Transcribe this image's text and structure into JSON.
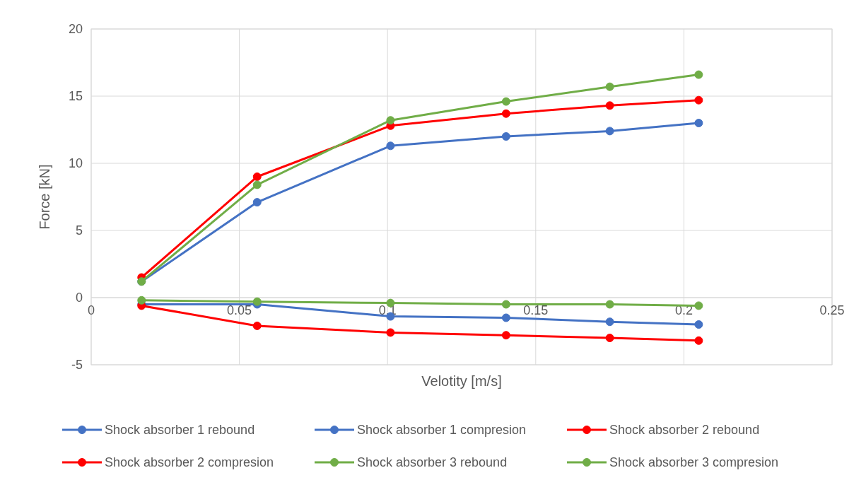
{
  "chart_data": {
    "type": "line",
    "xlabel": "Velotity [m/s]",
    "ylabel": "Force [kN]",
    "x": [
      0.017,
      0.056,
      0.101,
      0.14,
      0.175,
      0.205
    ],
    "xlim": [
      0,
      0.25
    ],
    "xticks": [
      0,
      0.05,
      0.1,
      0.15,
      0.2,
      0.25
    ],
    "ylim": [
      -5,
      20
    ],
    "yticks": [
      -5,
      0,
      5,
      10,
      15,
      20
    ],
    "grid": true,
    "legend": "bottom",
    "marker": "circle",
    "line_style": "solid",
    "series": [
      {
        "name": "Shock absorber 1 rebound",
        "color": "#4472c4",
        "values": [
          1.2,
          7.1,
          11.3,
          12.0,
          12.4,
          13.0
        ]
      },
      {
        "name": "Shock absorber 1 compresion",
        "color": "#4472c4",
        "values": [
          -0.5,
          -0.5,
          -1.4,
          -1.5,
          -1.8,
          -2.0
        ]
      },
      {
        "name": "Shock absorber 2 rebound",
        "color": "#ff0000",
        "values": [
          1.5,
          9.0,
          12.8,
          13.7,
          14.3,
          14.7
        ]
      },
      {
        "name": "Shock absorber 2 compresion",
        "color": "#ff0000",
        "values": [
          -0.6,
          -2.1,
          -2.6,
          -2.8,
          -3.0,
          -3.2
        ]
      },
      {
        "name": "Shock absorber 3 rebound",
        "color": "#70ad47",
        "values": [
          1.2,
          8.4,
          13.2,
          14.6,
          15.7,
          16.6
        ]
      },
      {
        "name": "Shock absorber 3  compresion",
        "color": "#70ad47",
        "values": [
          -0.2,
          -0.3,
          -0.4,
          -0.5,
          -0.5,
          -0.6
        ]
      }
    ]
  }
}
